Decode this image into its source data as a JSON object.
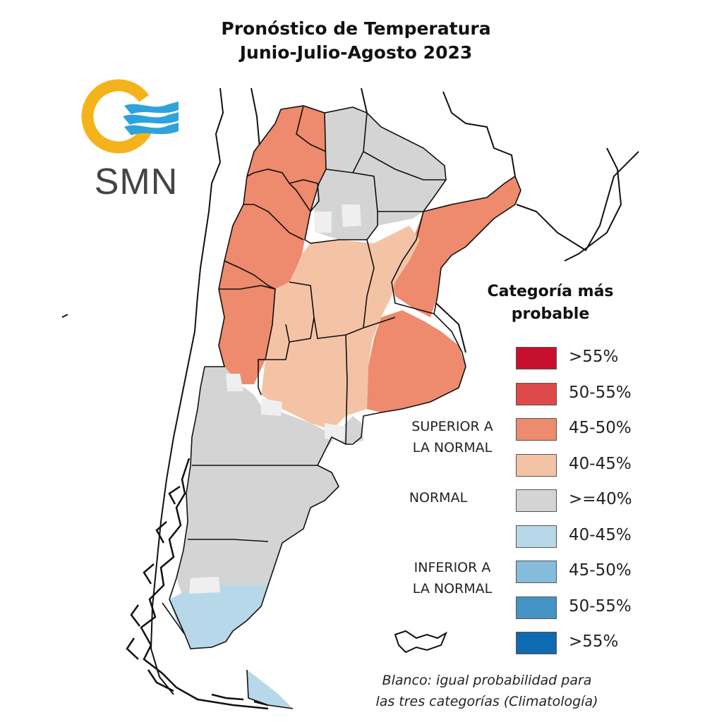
{
  "title_line1": "Pronóstico de Temperatura",
  "title_line2": "Junio-Julio-Agosto 2023",
  "logo": {
    "text": "SMN",
    "ring_color": "#F5B31B",
    "wave_color": "#2EA3DB"
  },
  "legend": {
    "title_line1": "Categoría más",
    "title_line2": "probable",
    "items": [
      {
        "label": ">55%",
        "color": "#C8102E"
      },
      {
        "label": "50-55%",
        "color": "#DE4A4A"
      },
      {
        "label": "45-50%",
        "color": "#EE8A6D"
      },
      {
        "label": "40-45%",
        "color": "#F4C3A6"
      },
      {
        "label": ">=40%",
        "color": "#D4D4D4"
      },
      {
        "label": "40-45%",
        "color": "#B7D8E9"
      },
      {
        "label": "45-50%",
        "color": "#86BCDB"
      },
      {
        "label": "50-55%",
        "color": "#4592C5"
      },
      {
        "label": ">55%",
        "color": "#0F6BB0"
      }
    ],
    "category_superior_line1": "SUPERIOR A",
    "category_superior_line2": "LA NORMAL",
    "category_normal": "NORMAL",
    "category_inferior_line1": "INFERIOR A",
    "category_inferior_line2": "LA NORMAL"
  },
  "footnote_line1": "Blanco: igual probabilidad para",
  "footnote_line2": "las tres categorías (Climatología)"
}
